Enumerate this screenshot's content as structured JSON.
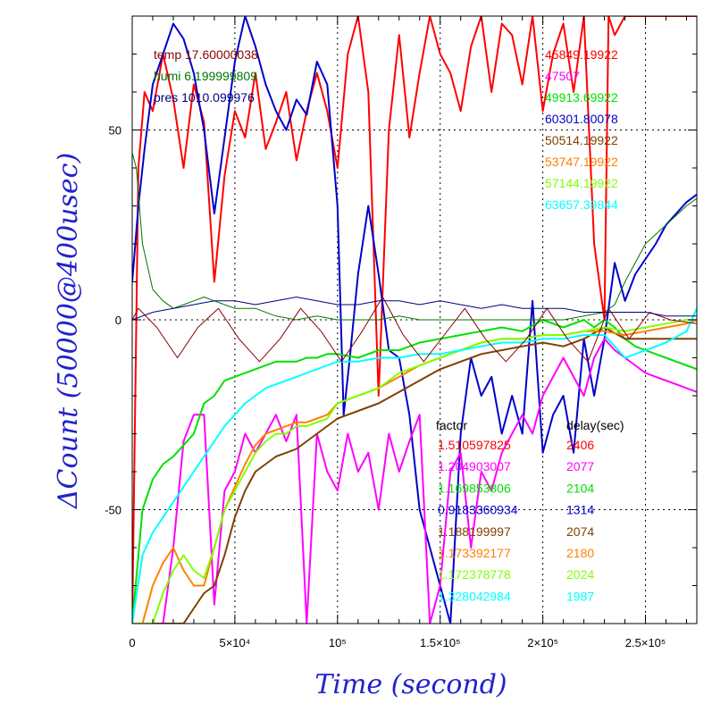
{
  "chart_data": {
    "type": "line",
    "xlabel": "Time (second)",
    "ylabel": "ΔCount (50000@400usec)",
    "xlim": [
      0,
      275000
    ],
    "ylim": [
      -80,
      80
    ],
    "x_ticks": [
      {
        "value": 0,
        "label": "0"
      },
      {
        "value": 50000,
        "label": "5×10⁴"
      },
      {
        "value": 100000,
        "label": "10⁵"
      },
      {
        "value": 150000,
        "label": "1.5×10⁵"
      },
      {
        "value": 200000,
        "label": "2×10⁵"
      },
      {
        "value": 250000,
        "label": "2.5×10⁵"
      }
    ],
    "y_ticks": [
      {
        "value": -50,
        "label": "-50"
      },
      {
        "value": 0,
        "label": "0"
      },
      {
        "value": 50,
        "label": "50"
      }
    ],
    "grid": true,
    "env_legend": [
      {
        "label": "temp 17.60000038",
        "color": "#8b0000"
      },
      {
        "label": "humi 6.199999809",
        "color": "#007700"
      },
      {
        "label": "pres 1010.099976",
        "color": "#000080"
      }
    ],
    "station_ids": [
      {
        "label": "45849.19922",
        "color": "#ff0000"
      },
      {
        "label": "47507",
        "color": "#ff00ff"
      },
      {
        "label": "49913.69922",
        "color": "#00e000"
      },
      {
        "label": "60301.80078",
        "color": "#0000cc"
      },
      {
        "label": "50514.19922",
        "color": "#804000"
      },
      {
        "label": "53747.19922",
        "color": "#ff8000"
      },
      {
        "label": "57144.19922",
        "color": "#80ff00"
      },
      {
        "label": "63657.39844",
        "color": "#00ffff"
      }
    ],
    "factor_header": "factor",
    "delay_header": "delay(sec)",
    "factor_rows": [
      {
        "factor": "1.510597825",
        "delay": "2406",
        "color": "#ff0000"
      },
      {
        "factor": "1.204903007",
        "delay": "2077",
        "color": "#ff00ff"
      },
      {
        "factor": "1.169853806",
        "delay": "2104",
        "color": "#00e000"
      },
      {
        "factor": "0.9183360934",
        "delay": "1314",
        "color": "#0000cc"
      },
      {
        "factor": "1.188199997",
        "delay": "2074",
        "color": "#804000"
      },
      {
        "factor": "1.173392177",
        "delay": "2180",
        "color": "#ff8000"
      },
      {
        "factor": "1.172378778",
        "delay": "2024",
        "color": "#80ff00"
      },
      {
        "factor": "1.328042984",
        "delay": "1987",
        "color": "#00ffff"
      }
    ],
    "series": [
      {
        "color": "#ff0000",
        "x": [
          0,
          3000,
          6000,
          10000,
          15000,
          20000,
          25000,
          30000,
          35000,
          40000,
          45000,
          50000,
          55000,
          60000,
          65000,
          70000,
          75000,
          80000,
          85000,
          90000,
          95000,
          100000,
          105000,
          110000,
          115000,
          120000,
          125000,
          130000,
          135000,
          140000,
          145000,
          150000,
          155000,
          160000,
          165000,
          170000,
          175000,
          180000,
          185000,
          190000,
          195000,
          200000,
          205000,
          210000,
          215000,
          220000,
          225000,
          230000,
          232000,
          235000,
          240000,
          245000,
          250000,
          255000,
          260000,
          265000,
          270000,
          275000
        ],
        "values": [
          -80,
          40,
          60,
          55,
          70,
          58,
          40,
          62,
          52,
          10,
          38,
          55,
          48,
          65,
          45,
          52,
          60,
          42,
          55,
          65,
          55,
          40,
          70,
          80,
          60,
          -20,
          50,
          75,
          48,
          65,
          80,
          70,
          65,
          55,
          72,
          80,
          60,
          78,
          75,
          62,
          80,
          55,
          70,
          78,
          60,
          80,
          20,
          0,
          80,
          75,
          80,
          80,
          80,
          80,
          80,
          80,
          80,
          80
        ]
      },
      {
        "color": "#0000cc",
        "x": [
          0,
          3000,
          6000,
          10000,
          15000,
          20000,
          25000,
          30000,
          35000,
          40000,
          45000,
          50000,
          55000,
          60000,
          65000,
          70000,
          75000,
          80000,
          85000,
          90000,
          95000,
          100000,
          103000,
          106000,
          110000,
          115000,
          120000,
          125000,
          130000,
          135000,
          140000,
          145000,
          150000,
          155000,
          160000,
          165000,
          170000,
          175000,
          180000,
          185000,
          190000,
          195000,
          200000,
          205000,
          210000,
          215000,
          220000,
          225000,
          230000,
          235000,
          240000,
          245000,
          250000,
          255000,
          260000,
          265000,
          270000,
          275000
        ],
        "values": [
          10,
          30,
          45,
          62,
          70,
          78,
          74,
          65,
          50,
          28,
          48,
          68,
          80,
          72,
          62,
          55,
          50,
          58,
          54,
          68,
          62,
          30,
          -25,
          -10,
          12,
          30,
          12,
          -8,
          -10,
          -25,
          -50,
          -60,
          -70,
          -80,
          -30,
          -10,
          -20,
          -15,
          -30,
          -20,
          -30,
          5,
          -35,
          -25,
          -20,
          -35,
          -5,
          -20,
          -5,
          15,
          5,
          12,
          16,
          20,
          25,
          28,
          31,
          33
        ]
      },
      {
        "color": "#ff00ff",
        "x": [
          0,
          5000,
          10000,
          15000,
          20000,
          25000,
          30000,
          35000,
          40000,
          45000,
          50000,
          55000,
          60000,
          65000,
          70000,
          75000,
          80000,
          85000,
          90000,
          95000,
          100000,
          105000,
          110000,
          115000,
          120000,
          125000,
          130000,
          135000,
          140000,
          145000,
          150000,
          155000,
          160000,
          165000,
          170000,
          175000,
          180000,
          185000,
          190000,
          195000,
          200000,
          205000,
          210000,
          215000,
          220000,
          225000,
          230000,
          235000,
          240000,
          245000,
          250000,
          255000,
          260000,
          265000,
          270000,
          275000
        ],
        "values": [
          -80,
          -80,
          -80,
          -80,
          -60,
          -32,
          -25,
          -25,
          -75,
          -45,
          -40,
          -30,
          -35,
          -30,
          -25,
          -32,
          -25,
          -80,
          -30,
          -40,
          -45,
          -30,
          -40,
          -35,
          -50,
          -30,
          -40,
          -32,
          -25,
          -80,
          -70,
          -40,
          -35,
          -60,
          -40,
          -45,
          -35,
          -30,
          -25,
          -30,
          -20,
          -15,
          -10,
          -15,
          -20,
          -10,
          -5,
          -8,
          -10,
          -12,
          -14,
          -15,
          -16,
          -17,
          -18,
          -19
        ]
      },
      {
        "color": "#00e000",
        "x": [
          0,
          5000,
          10000,
          15000,
          20000,
          25000,
          30000,
          35000,
          40000,
          45000,
          50000,
          55000,
          60000,
          65000,
          70000,
          75000,
          80000,
          85000,
          90000,
          95000,
          100000,
          110000,
          120000,
          130000,
          140000,
          150000,
          160000,
          170000,
          180000,
          190000,
          200000,
          210000,
          220000,
          225000,
          230000,
          235000,
          240000,
          245000,
          250000,
          255000,
          260000,
          265000,
          270000,
          275000
        ],
        "values": [
          -80,
          -50,
          -42,
          -38,
          -36,
          -33,
          -30,
          -22,
          -20,
          -16,
          -15,
          -14,
          -13,
          -12,
          -11,
          -11,
          -11,
          -10,
          -10,
          -9,
          -9,
          -10,
          -8,
          -8,
          -6,
          -5,
          -4,
          -3,
          -2,
          -3,
          0,
          -2,
          0,
          -2,
          0,
          -2,
          -5,
          -7,
          -8,
          -9,
          -10,
          -11,
          -12,
          -13
        ]
      },
      {
        "color": "#804000",
        "x": [
          0,
          5000,
          10000,
          15000,
          20000,
          25000,
          30000,
          35000,
          40000,
          45000,
          50000,
          55000,
          60000,
          65000,
          70000,
          75000,
          80000,
          85000,
          90000,
          95000,
          100000,
          110000,
          120000,
          130000,
          140000,
          150000,
          160000,
          170000,
          180000,
          190000,
          200000,
          210000,
          220000,
          230000,
          240000,
          250000,
          260000,
          270000,
          275000
        ],
        "values": [
          -80,
          -80,
          -80,
          -80,
          -80,
          -80,
          -76,
          -72,
          -70,
          -62,
          -52,
          -45,
          -40,
          -38,
          -36,
          -35,
          -34,
          -32,
          -30,
          -28,
          -26,
          -24,
          -22,
          -19,
          -16,
          -13,
          -11,
          -9,
          -8,
          -7,
          -6,
          -7,
          -5,
          -2,
          -5,
          -5,
          -5,
          -5,
          -5
        ]
      },
      {
        "color": "#ff8000",
        "x": [
          0,
          5000,
          10000,
          15000,
          20000,
          25000,
          30000,
          35000,
          40000,
          45000,
          50000,
          55000,
          60000,
          65000,
          70000,
          75000,
          80000,
          85000,
          90000,
          95000,
          100000,
          110000,
          120000,
          130000,
          140000,
          150000,
          160000,
          170000,
          180000,
          190000,
          200000,
          210000,
          220000,
          230000,
          240000,
          250000,
          260000,
          270000,
          275000
        ],
        "values": [
          -80,
          -80,
          -70,
          -64,
          -60,
          -66,
          -70,
          -70,
          -60,
          -50,
          -44,
          -38,
          -33,
          -30,
          -29,
          -28,
          -27,
          -27,
          -26,
          -25,
          -22,
          -20,
          -18,
          -15,
          -12,
          -10,
          -8,
          -6,
          -5,
          -5,
          -4,
          -4,
          -3,
          -3,
          -4,
          -3,
          -2,
          -1,
          0
        ]
      },
      {
        "color": "#80ff00",
        "x": [
          0,
          5000,
          10000,
          15000,
          20000,
          25000,
          30000,
          35000,
          40000,
          45000,
          50000,
          55000,
          60000,
          65000,
          70000,
          75000,
          80000,
          85000,
          90000,
          95000,
          100000,
          110000,
          120000,
          130000,
          140000,
          150000,
          160000,
          170000,
          180000,
          190000,
          200000,
          210000,
          220000,
          230000,
          240000,
          250000,
          260000,
          270000,
          275000
        ],
        "values": [
          -80,
          -80,
          -80,
          -72,
          -66,
          -62,
          -66,
          -68,
          -60,
          -50,
          -45,
          -40,
          -35,
          -32,
          -30,
          -30,
          -28,
          -28,
          -27,
          -26,
          -22,
          -20,
          -18,
          -14,
          -12,
          -10,
          -8,
          -6,
          -5,
          -5,
          -4,
          -4,
          -3,
          -2,
          -3,
          -2,
          -1,
          0,
          0
        ]
      },
      {
        "color": "#00ffff",
        "x": [
          0,
          5000,
          10000,
          15000,
          20000,
          25000,
          30000,
          35000,
          40000,
          45000,
          50000,
          55000,
          60000,
          65000,
          70000,
          75000,
          80000,
          85000,
          90000,
          95000,
          100000,
          110000,
          120000,
          130000,
          140000,
          150000,
          160000,
          170000,
          180000,
          190000,
          200000,
          210000,
          220000,
          230000,
          240000,
          250000,
          260000,
          270000,
          275000
        ],
        "values": [
          -80,
          -62,
          -56,
          -52,
          -48,
          -44,
          -40,
          -36,
          -32,
          -28,
          -25,
          -22,
          -20,
          -18,
          -17,
          -16,
          -15,
          -14,
          -13,
          -12,
          -11,
          -11,
          -10,
          -10,
          -9,
          -9,
          -8,
          -7,
          -6,
          -6,
          -5,
          -5,
          -4,
          -4,
          -10,
          -8,
          -6,
          -3,
          3
        ]
      },
      {
        "color": "#8b0000",
        "width": 1,
        "x": [
          0,
          3000,
          12000,
          22000,
          32000,
          42000,
          52000,
          62000,
          72000,
          82000,
          92000,
          102000,
          112000,
          122000,
          132000,
          142000,
          152000,
          162000,
          172000,
          182000,
          192000,
          202000,
          212000,
          222000,
          232000,
          242000,
          252000,
          262000,
          275000
        ],
        "values": [
          0,
          3,
          -2,
          -10,
          -2,
          3,
          -5,
          -11,
          -5,
          3,
          -3,
          -11,
          -3,
          6,
          -4,
          -11,
          -4,
          3,
          -5,
          -11,
          -5,
          3,
          -5,
          -11,
          3,
          -5,
          2,
          0,
          -1
        ]
      },
      {
        "color": "#007700",
        "width": 1,
        "x": [
          0,
          2000,
          5000,
          10000,
          15000,
          20000,
          25000,
          30000,
          35000,
          40000,
          45000,
          50000,
          60000,
          70000,
          80000,
          90000,
          100000,
          110000,
          120000,
          130000,
          140000,
          150000,
          160000,
          170000,
          180000,
          190000,
          200000,
          210000,
          220000,
          230000,
          235000,
          240000,
          250000,
          260000,
          270000,
          275000
        ],
        "values": [
          44,
          40,
          20,
          8,
          5,
          3,
          4,
          5,
          6,
          5,
          4,
          3,
          3,
          1,
          0,
          1,
          0,
          0,
          0,
          1,
          0,
          0,
          0,
          0,
          0,
          0,
          0,
          0,
          1,
          2,
          4,
          10,
          20,
          25,
          30,
          32
        ]
      },
      {
        "color": "#000080",
        "width": 1,
        "x": [
          0,
          10000,
          20000,
          30000,
          40000,
          50000,
          60000,
          70000,
          80000,
          90000,
          100000,
          110000,
          120000,
          130000,
          140000,
          150000,
          160000,
          170000,
          180000,
          190000,
          200000,
          210000,
          220000,
          230000,
          240000,
          250000,
          260000,
          275000
        ],
        "values": [
          0,
          2,
          3,
          4,
          5,
          5,
          4,
          5,
          6,
          5,
          4,
          4,
          5,
          5,
          4,
          5,
          4,
          3,
          4,
          3,
          3,
          3,
          2,
          2,
          2,
          2,
          1,
          1
        ]
      }
    ]
  }
}
